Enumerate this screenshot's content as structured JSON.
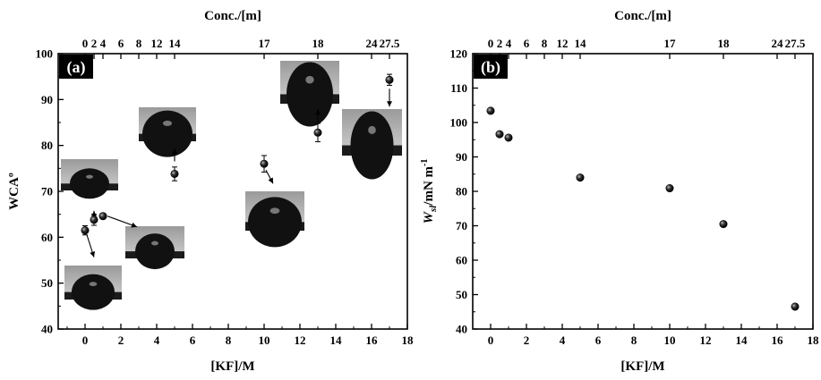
{
  "chart_data": [
    {
      "type": "scatter",
      "panel_label": "(a)",
      "xlabel": "[KF]/M",
      "ylabel": "WCAº",
      "top_axis_label": "Conc./[m]",
      "xlim": [
        -1.5,
        18
      ],
      "ylim": [
        40,
        100
      ],
      "xticks": [
        "0",
        "2",
        "4",
        "6",
        "8",
        "10",
        "12",
        "14",
        "16",
        "18"
      ],
      "yticks": [
        "40",
        "50",
        "60",
        "70",
        "80",
        "90",
        "100"
      ],
      "top_ticks": [
        "0",
        "2",
        "4",
        "6",
        "8",
        "12",
        "14",
        "17",
        "18",
        "24",
        "27.5"
      ],
      "top_ticks_at_x": [
        0,
        0.5,
        1,
        2,
        3,
        4,
        5,
        10,
        13,
        16,
        17
      ],
      "x": [
        0,
        0.5,
        1,
        5,
        10,
        13,
        17
      ],
      "y": [
        61.5,
        63.8,
        64.6,
        73.8,
        76.0,
        82.8,
        94.3
      ],
      "yerr": [
        1.0,
        1.2,
        0.6,
        1.5,
        1.8,
        2.0,
        1.2
      ],
      "insets": "droplet photographs"
    },
    {
      "type": "scatter",
      "panel_label": "(b)",
      "xlabel": "[KF]/M",
      "ylabel_main": "W",
      "ylabel_sub": "sl",
      "ylabel_rest": "/mN m",
      "ylabel_sup": "-1",
      "top_axis_label": "Conc./[m]",
      "xlim": [
        -1,
        18
      ],
      "ylim": [
        40,
        120
      ],
      "xticks": [
        "0",
        "2",
        "4",
        "6",
        "8",
        "10",
        "12",
        "14",
        "16",
        "18"
      ],
      "yticks": [
        "40",
        "50",
        "60",
        "70",
        "80",
        "90",
        "100",
        "110",
        "120"
      ],
      "top_ticks": [
        "0",
        "2",
        "4",
        "6",
        "8",
        "12",
        "14",
        "17",
        "18",
        "24",
        "27.5"
      ],
      "top_ticks_at_x": [
        0,
        0.5,
        1,
        2,
        3,
        4,
        5,
        10,
        13,
        16,
        17
      ],
      "x": [
        0,
        0.5,
        1,
        5,
        10,
        13,
        17
      ],
      "y": [
        103.4,
        96.6,
        95.6,
        84.0,
        80.9,
        70.5,
        46.5
      ]
    }
  ]
}
